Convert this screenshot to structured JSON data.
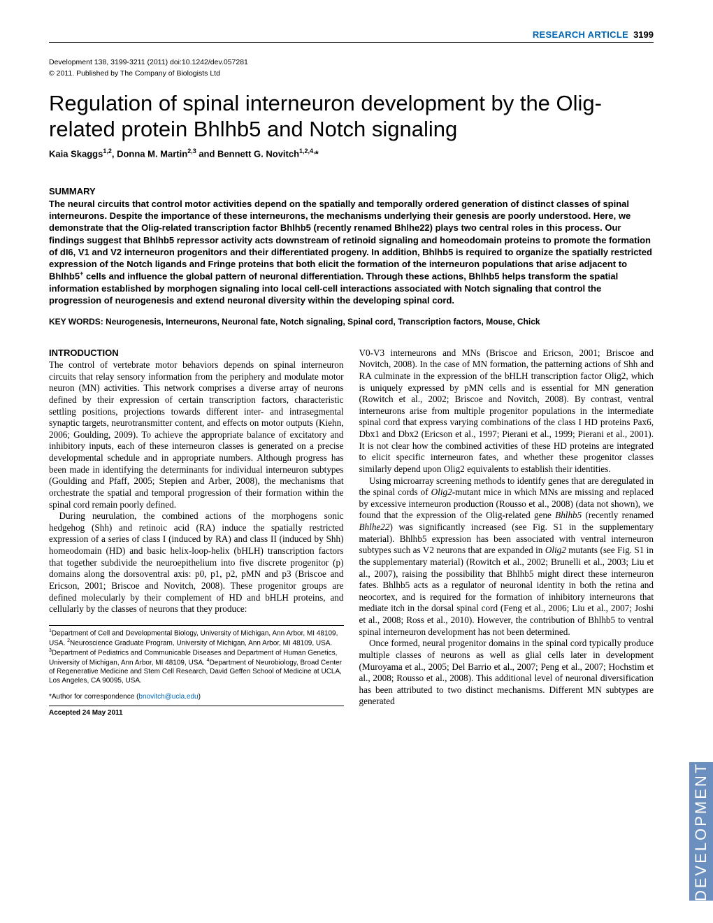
{
  "header": {
    "label": "RESEARCH ARTICLE",
    "page_number": "3199",
    "label_color": "#0066b3"
  },
  "citation": "Development 138, 3199-3211 (2011) doi:10.1242/dev.057281",
  "copyright": "© 2011. Published by The Company of Biologists Ltd",
  "title": "Regulation of spinal interneuron development by the Olig-related protein Bhlhb5 and Notch signaling",
  "authors_html": "Kaia Skaggs<sup>1,2</sup>, Donna M. Martin<sup>2,3</sup> and Bennett G. Novitch<sup>1,2,4,</sup>*",
  "summary": {
    "heading": "SUMMARY",
    "body_html": "The neural circuits that control motor activities depend on the spatially and temporally ordered generation of distinct classes of spinal interneurons. Despite the importance of these interneurons, the mechanisms underlying their genesis are poorly understood. Here, we demonstrate that the Olig-related transcription factor Bhlhb5 (recently renamed Bhlhe22) plays two central roles in this process. Our findings suggest that Bhlhb5 repressor activity acts downstream of retinoid signaling and homeodomain proteins to promote the formation of dI6, V1 and V2 interneuron progenitors and their differentiated progeny. In addition, Bhlhb5 is required to organize the spatially restricted expression of the Notch ligands and Fringe proteins that both elicit the formation of the interneuron populations that arise adjacent to Bhlhb5<sup>+</sup> cells and influence the global pattern of neuronal differentiation. Through these actions, Bhlhb5 helps transform the spatial information established by morphogen signaling into local cell-cell interactions associated with Notch signaling that control the progression of neurogenesis and extend neuronal diversity within the developing spinal cord."
  },
  "keywords": "KEY WORDS: Neurogenesis, Interneurons, Neuronal fate, Notch signaling, Spinal cord, Transcription factors, Mouse, Chick",
  "intro": {
    "heading": "INTRODUCTION",
    "left_paragraph_1": "The control of vertebrate motor behaviors depends on spinal interneuron circuits that relay sensory information from the periphery and modulate motor neuron (MN) activities. This network comprises a diverse array of neurons defined by their expression of certain transcription factors, characteristic settling positions, projections towards different inter- and intrasegmental synaptic targets, neurotransmitter content, and effects on motor outputs (Kiehn, 2006; Goulding, 2009). To achieve the appropriate balance of excitatory and inhibitory inputs, each of these interneuron classes is generated on a precise developmental schedule and in appropriate numbers. Although progress has been made in identifying the determinants for individual interneuron subtypes (Goulding and Pfaff, 2005; Stepien and Arber, 2008), the mechanisms that orchestrate the spatial and temporal progression of their formation within the spinal cord remain poorly defined.",
    "left_paragraph_2": "During neurulation, the combined actions of the morphogens sonic hedgehog (Shh) and retinoic acid (RA) induce the spatially restricted expression of a series of class I (induced by RA) and class II (induced by Shh) homeodomain (HD) and basic helix-loop-helix (bHLH) transcription factors that together subdivide the neuroepithelium into five discrete progenitor (p) domains along the dorsoventral axis: p0, p1, p2, pMN and p3 (Briscoe and Ericson, 2001; Briscoe and Novitch, 2008). These progenitor groups are defined molecularly by their complement of HD and bHLH proteins, and cellularly by the classes of neurons that they produce:",
    "right_paragraph_1": "V0-V3 interneurons and MNs (Briscoe and Ericson, 2001; Briscoe and Novitch, 2008). In the case of MN formation, the patterning actions of Shh and RA culminate in the expression of the bHLH transcription factor Olig2, which is uniquely expressed by pMN cells and is essential for MN generation (Rowitch et al., 2002; Briscoe and Novitch, 2008). By contrast, ventral interneurons arise from multiple progenitor populations in the intermediate spinal cord that express varying combinations of the class I HD proteins Pax6, Dbx1 and Dbx2 (Ericson et al., 1997; Pierani et al., 1999; Pierani et al., 2001). It is not clear how the combined activities of these HD proteins are integrated to elicit specific interneuron fates, and whether these progenitor classes similarly depend upon Olig2 equivalents to establish their identities.",
    "right_paragraph_2_html": "Using microarray screening methods to identify genes that are deregulated in the spinal cords of <em>Olig2</em>-mutant mice in which MNs are missing and replaced by excessive interneuron production (Rousso et al., 2008) (data not shown), we found that the expression of the Olig-related gene <em>Bhlhb5</em> (recently renamed <em>Bhlhe22</em>) was significantly increased (see Fig. S1 in the supplementary material). Bhlhb5 expression has been associated with ventral interneuron subtypes such as V2 neurons that are expanded in <em>Olig2</em> mutants (see Fig. S1 in the supplementary material) (Rowitch et al., 2002; Brunelli et al., 2003; Liu et al., 2007), raising the possibility that Bhlhb5 might direct these interneuron fates. Bhlhb5 acts as a regulator of neuronal identity in both the retina and neocortex, and is required for the formation of inhibitory interneurons that mediate itch in the dorsal spinal cord (Feng et al., 2006; Liu et al., 2007; Joshi et al., 2008; Ross et al., 2010). However, the contribution of Bhlhb5 to ventral spinal interneuron development has not been determined.",
    "right_paragraph_3": "Once formed, neural progenitor domains in the spinal cord typically produce multiple classes of neurons as well as glial cells later in development (Muroyama et al., 2005; Del Barrio et al., 2007; Peng et al., 2007; Hochstim et al., 2008; Rousso et al., 2008). This additional level of neuronal diversification has been attributed to two distinct mechanisms. Different MN subtypes are generated"
  },
  "affiliations_html": "<sup>1</sup>Department of Cell and Developmental Biology, University of Michigan, Ann Arbor, MI 48109, USA. <sup>2</sup>Neuroscience Graduate Program, University of Michigan, Ann Arbor, MI 48109, USA. <sup>3</sup>Department of Pediatrics and Communicable Diseases and Department of Human Genetics, University of Michigan, Ann Arbor, MI 48109, USA. <sup>4</sup>Department of Neurobiology, Broad Center of Regenerative Medicine and Stem Cell Research, David Geffen School of Medicine at UCLA, Los Angeles, CA 90095, USA.",
  "correspondence": {
    "prefix": "*Author for correspondence (",
    "email": "bnovitch@ucla.edu",
    "suffix": ")"
  },
  "accepted": "Accepted 24 May 2011",
  "side_tab": {
    "text": "DEVELOPMENT",
    "bg_color": "#6b8fbf",
    "text_color": "#ffffff"
  }
}
